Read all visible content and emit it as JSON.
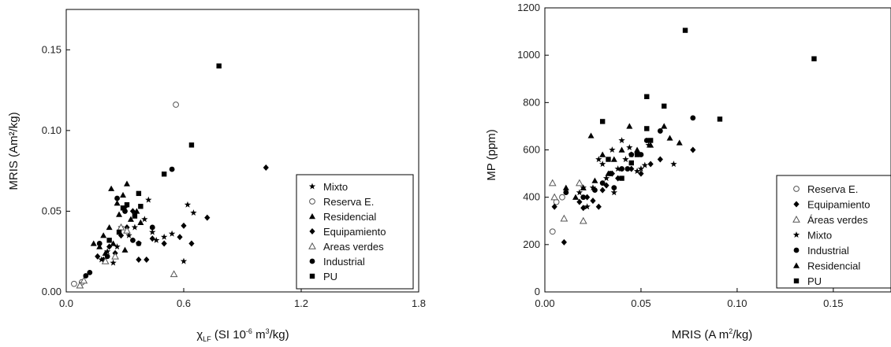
{
  "chart_data": [
    {
      "type": "scatter",
      "title": "",
      "ylabel": "MRIS (Am²/kg)",
      "xlabel_parts": [
        "χ",
        "LF",
        " (SI 10",
        "-6",
        " m",
        "3",
        "/kg)"
      ],
      "xlim": [
        0,
        1.8
      ],
      "ylim": [
        0,
        0.175
      ],
      "xticks": [
        0.0,
        0.6,
        1.2,
        1.8
      ],
      "xtick_labels": [
        "0.0",
        "0.6",
        "1.2",
        "1.8"
      ],
      "yticks": [
        0.0,
        0.05,
        0.1,
        0.15
      ],
      "ytick_labels": [
        "0.00",
        "0.05",
        "0.10",
        "0.15"
      ],
      "legend_position": "bottom-right",
      "series": [
        {
          "name": "Mixto",
          "marker": "star",
          "points": [
            [
              0.18,
              0.02
            ],
            [
              0.21,
              0.025
            ],
            [
              0.24,
              0.018
            ],
            [
              0.26,
              0.028
            ],
            [
              0.28,
              0.04
            ],
            [
              0.3,
              0.052
            ],
            [
              0.32,
              0.035
            ],
            [
              0.35,
              0.04
            ],
            [
              0.37,
              0.03
            ],
            [
              0.4,
              0.045
            ],
            [
              0.44,
              0.037
            ],
            [
              0.46,
              0.032
            ],
            [
              0.5,
              0.034
            ],
            [
              0.54,
              0.036
            ],
            [
              0.62,
              0.054
            ],
            [
              0.6,
              0.019
            ],
            [
              0.65,
              0.049
            ],
            [
              0.42,
              0.057
            ]
          ]
        },
        {
          "name": "Reserva E.",
          "marker": "circle-open",
          "points": [
            [
              0.04,
              0.005
            ],
            [
              0.08,
              0.006
            ],
            [
              0.56,
              0.116
            ]
          ]
        },
        {
          "name": "Residencial",
          "marker": "triangle",
          "points": [
            [
              0.14,
              0.03
            ],
            [
              0.17,
              0.028
            ],
            [
              0.19,
              0.035
            ],
            [
              0.22,
              0.04
            ],
            [
              0.23,
              0.064
            ],
            [
              0.26,
              0.055
            ],
            [
              0.27,
              0.048
            ],
            [
              0.29,
              0.06
            ],
            [
              0.31,
              0.067
            ],
            [
              0.33,
              0.045
            ],
            [
              0.36,
              0.05
            ],
            [
              0.38,
              0.043
            ],
            [
              0.2,
              0.024
            ],
            [
              0.24,
              0.03
            ],
            [
              0.3,
              0.026
            ]
          ]
        },
        {
          "name": "Equipamiento",
          "marker": "diamond",
          "points": [
            [
              0.16,
              0.022
            ],
            [
              0.19,
              0.02
            ],
            [
              0.22,
              0.028
            ],
            [
              0.25,
              0.024
            ],
            [
              0.28,
              0.035
            ],
            [
              0.31,
              0.04
            ],
            [
              0.34,
              0.05
            ],
            [
              0.37,
              0.02
            ],
            [
              0.41,
              0.02
            ],
            [
              0.44,
              0.033
            ],
            [
              0.5,
              0.03
            ],
            [
              0.58,
              0.034
            ],
            [
              0.6,
              0.041
            ],
            [
              0.64,
              0.03
            ],
            [
              0.72,
              0.046
            ],
            [
              1.02,
              0.077
            ]
          ]
        },
        {
          "name": "Areas verdes",
          "marker": "triangle-open",
          "points": [
            [
              0.07,
              0.004
            ],
            [
              0.09,
              0.007
            ],
            [
              0.2,
              0.019
            ],
            [
              0.25,
              0.022
            ],
            [
              0.28,
              0.04
            ],
            [
              0.31,
              0.038
            ],
            [
              0.55,
              0.011
            ]
          ]
        },
        {
          "name": "Industrial",
          "marker": "circle",
          "points": [
            [
              0.1,
              0.01
            ],
            [
              0.12,
              0.012
            ],
            [
              0.17,
              0.03
            ],
            [
              0.21,
              0.022
            ],
            [
              0.26,
              0.058
            ],
            [
              0.3,
              0.05
            ],
            [
              0.34,
              0.032
            ],
            [
              0.37,
              0.03
            ],
            [
              0.44,
              0.04
            ],
            [
              0.54,
              0.076
            ]
          ]
        },
        {
          "name": "PU",
          "marker": "square",
          "points": [
            [
              0.22,
              0.032
            ],
            [
              0.27,
              0.037
            ],
            [
              0.29,
              0.052
            ],
            [
              0.31,
              0.054
            ],
            [
              0.35,
              0.047
            ],
            [
              0.37,
              0.061
            ],
            [
              0.38,
              0.053
            ],
            [
              0.5,
              0.073
            ],
            [
              0.64,
              0.091
            ],
            [
              0.78,
              0.14
            ]
          ]
        }
      ]
    },
    {
      "type": "scatter",
      "title": "",
      "ylabel": "MP (ppm)",
      "xlabel_parts": [
        "MRIS (A m",
        "2",
        "/kg)"
      ],
      "xlim": [
        0,
        0.18
      ],
      "ylim": [
        0,
        1200
      ],
      "xticks": [
        0.0,
        0.05,
        0.1,
        0.15
      ],
      "xtick_labels": [
        "0.00",
        "0.05",
        "0.10",
        "0.15"
      ],
      "yticks": [
        0,
        200,
        400,
        600,
        800,
        1000,
        1200
      ],
      "ytick_labels": [
        "0",
        "200",
        "400",
        "600",
        "800",
        "1000",
        "1200"
      ],
      "legend_position": "bottom-right",
      "series": [
        {
          "name": "Reserva E.",
          "marker": "circle-open",
          "points": [
            [
              0.004,
              255
            ],
            [
              0.006,
              380
            ],
            [
              0.009,
              400
            ]
          ]
        },
        {
          "name": "Equipamiento",
          "marker": "diamond",
          "points": [
            [
              0.005,
              360
            ],
            [
              0.01,
              210
            ],
            [
              0.018,
              380
            ],
            [
              0.02,
              355
            ],
            [
              0.022,
              400
            ],
            [
              0.025,
              385
            ],
            [
              0.028,
              360
            ],
            [
              0.03,
              430
            ],
            [
              0.032,
              450
            ],
            [
              0.035,
              500
            ],
            [
              0.038,
              480
            ],
            [
              0.045,
              520
            ],
            [
              0.05,
              500
            ],
            [
              0.055,
              540
            ],
            [
              0.06,
              560
            ],
            [
              0.077,
              600
            ]
          ]
        },
        {
          "name": "Áreas verdes",
          "marker": "triangle-open",
          "points": [
            [
              0.004,
              460
            ],
            [
              0.005,
              400
            ],
            [
              0.01,
              310
            ],
            [
              0.018,
              460
            ],
            [
              0.02,
              300
            ]
          ]
        },
        {
          "name": "Mixto",
          "marker": "star",
          "points": [
            [
              0.018,
              420
            ],
            [
              0.02,
              440
            ],
            [
              0.022,
              360
            ],
            [
              0.025,
              440
            ],
            [
              0.028,
              560
            ],
            [
              0.03,
              540
            ],
            [
              0.032,
              480
            ],
            [
              0.035,
              600
            ],
            [
              0.036,
              420
            ],
            [
              0.038,
              520
            ],
            [
              0.04,
              640
            ],
            [
              0.042,
              560
            ],
            [
              0.044,
              610
            ],
            [
              0.045,
              580
            ],
            [
              0.048,
              510
            ],
            [
              0.05,
              520
            ],
            [
              0.052,
              535
            ],
            [
              0.054,
              620
            ],
            [
              0.067,
              540
            ]
          ]
        },
        {
          "name": "Industrial",
          "marker": "circle",
          "points": [
            [
              0.011,
              420
            ],
            [
              0.02,
              400
            ],
            [
              0.026,
              430
            ],
            [
              0.03,
              460
            ],
            [
              0.034,
              500
            ],
            [
              0.036,
              440
            ],
            [
              0.04,
              520
            ],
            [
              0.043,
              520
            ],
            [
              0.045,
              580
            ],
            [
              0.05,
              580
            ],
            [
              0.053,
              640
            ],
            [
              0.06,
              680
            ],
            [
              0.077,
              735
            ]
          ]
        },
        {
          "name": "Residencial",
          "marker": "triangle",
          "points": [
            [
              0.011,
              440
            ],
            [
              0.016,
              400
            ],
            [
              0.02,
              440
            ],
            [
              0.024,
              660
            ],
            [
              0.026,
              470
            ],
            [
              0.03,
              580
            ],
            [
              0.033,
              500
            ],
            [
              0.036,
              560
            ],
            [
              0.04,
              600
            ],
            [
              0.044,
              700
            ],
            [
              0.048,
              600
            ],
            [
              0.055,
              620
            ],
            [
              0.062,
              700
            ],
            [
              0.065,
              650
            ],
            [
              0.07,
              630
            ]
          ]
        },
        {
          "name": "PU",
          "marker": "square",
          "points": [
            [
              0.03,
              720
            ],
            [
              0.033,
              560
            ],
            [
              0.04,
              480
            ],
            [
              0.045,
              545
            ],
            [
              0.048,
              580
            ],
            [
              0.053,
              690
            ],
            [
              0.053,
              825
            ],
            [
              0.055,
              640
            ],
            [
              0.062,
              785
            ],
            [
              0.073,
              1105
            ],
            [
              0.091,
              730
            ],
            [
              0.14,
              985
            ]
          ]
        }
      ]
    }
  ]
}
